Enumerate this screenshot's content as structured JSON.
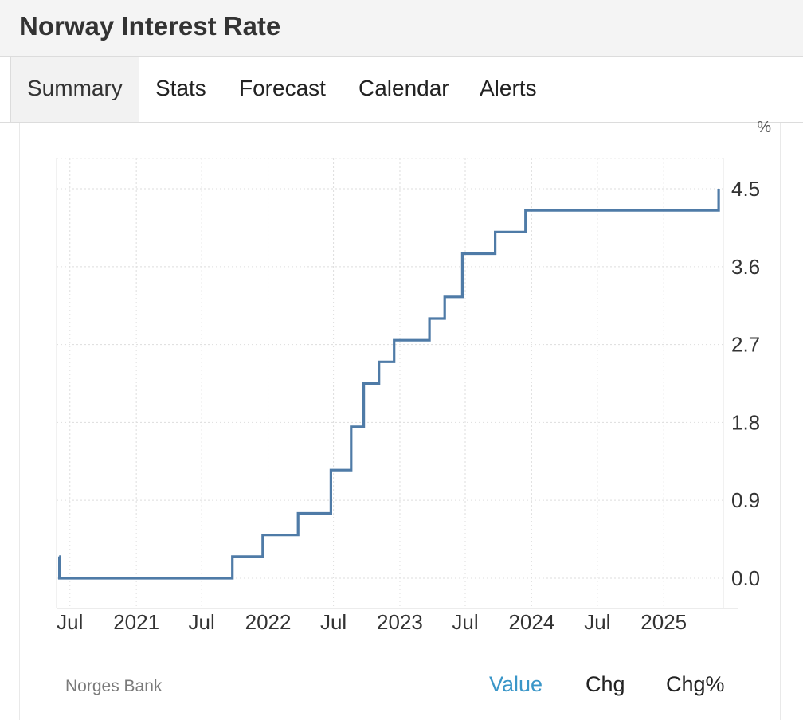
{
  "header": {
    "title": "Norway Interest Rate"
  },
  "tabs": [
    {
      "label": "Summary",
      "active": true
    },
    {
      "label": "Stats"
    },
    {
      "label": "Forecast"
    },
    {
      "label": "Calendar"
    },
    {
      "label": "Alerts"
    }
  ],
  "chart_data": {
    "type": "line",
    "step": true,
    "unit": "%",
    "x_tick_labels": [
      "Jul",
      "2021",
      "Jul",
      "2022",
      "Jul",
      "2023",
      "Jul",
      "2024",
      "Jul",
      "2025"
    ],
    "x_tick_dates": [
      "2020-07-01",
      "2021-01-01",
      "2021-07-01",
      "2022-01-01",
      "2022-07-01",
      "2023-01-01",
      "2023-07-01",
      "2024-01-01",
      "2024-07-01",
      "2025-01-01"
    ],
    "y_ticks": [
      "0.0",
      "0.9",
      "1.8",
      "2.7",
      "3.6",
      "4.5"
    ],
    "ylim": [
      -0.35,
      4.85
    ],
    "xlim": [
      "2020-05-25",
      "2025-06-15"
    ],
    "grid": true,
    "line_color": "#4f7ba7",
    "series": [
      {
        "x": [
          "2020-06-01",
          "2020-06-02",
          "2021-09-24",
          "2021-12-17",
          "2022-03-25",
          "2022-06-24",
          "2022-08-19",
          "2022-09-23",
          "2022-11-04",
          "2022-12-16",
          "2023-03-24",
          "2023-05-05",
          "2023-06-23",
          "2023-09-22",
          "2023-12-15",
          "2025-06-02"
        ],
        "y": [
          0.25,
          0.0,
          0.25,
          0.5,
          0.75,
          1.25,
          1.75,
          2.25,
          2.5,
          2.75,
          3.0,
          3.25,
          3.75,
          4.0,
          4.25,
          4.5
        ]
      }
    ]
  },
  "footer": {
    "source": "Norges Bank",
    "views": [
      {
        "label": "Value",
        "active": true
      },
      {
        "label": "Chg"
      },
      {
        "label": "Chg%"
      }
    ]
  }
}
